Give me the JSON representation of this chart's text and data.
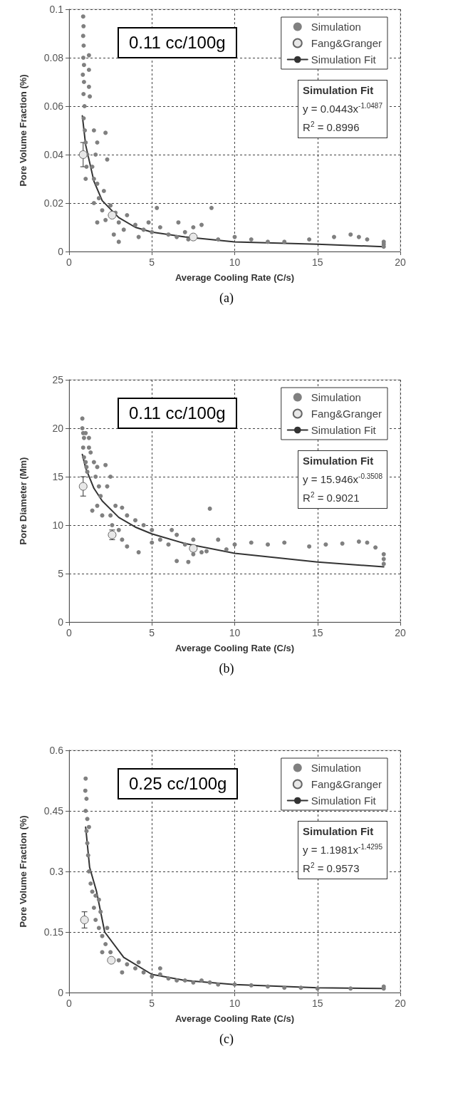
{
  "chart_data": [
    {
      "type": "scatter",
      "xlabel": "Average Cooling Rate (C/s)",
      "ylabel": "Pore Volume Fraction (%)",
      "xlim": [
        0,
        20
      ],
      "xticks": [
        0,
        5,
        10,
        15,
        20
      ],
      "ylim": [
        0,
        0.1
      ],
      "yticks": [
        0,
        0.02,
        0.04,
        0.06,
        0.08,
        0.1
      ],
      "grid": true,
      "legend": "top right",
      "annotations": [
        "0.11 cc/100g",
        "Simulation Fit",
        "y = 0.0443x$^{-1.0487}$",
        "R$^{2}$ = 0.8996",
        "(a)"
      ],
      "series": [
        {
          "name": "Simulation",
          "color": "#808080",
          "marker": "circle",
          "x": [
            0.85,
            0.87,
            0.85,
            0.88,
            0.86,
            0.9,
            0.83,
            0.9,
            0.87,
            0.93,
            0.88,
            0.95,
            1.0,
            1.1,
            1.05,
            1.0,
            1.2,
            1.2,
            1.2,
            1.25,
            1.5,
            1.7,
            1.6,
            1.4,
            1.5,
            2.2,
            2.3,
            1.7,
            1.8,
            1.5,
            2.0,
            1.7,
            2.2,
            2.5,
            2.8,
            3.0,
            3.3,
            2.7,
            3.0,
            2.1,
            4.0,
            4.5,
            5.0,
            5.5,
            6.0,
            5.3,
            6.5,
            7.0,
            7.2,
            7.5,
            8.0,
            8.6,
            6.6,
            9.0,
            10,
            11,
            12,
            13,
            14.5,
            16,
            17,
            17.5,
            18,
            19,
            19,
            19,
            3.5,
            4.2,
            4.8
          ],
          "values": [
            0.097,
            0.093,
            0.089,
            0.085,
            0.08,
            0.077,
            0.073,
            0.07,
            0.065,
            0.06,
            0.055,
            0.05,
            0.045,
            0.04,
            0.035,
            0.03,
            0.081,
            0.075,
            0.068,
            0.064,
            0.05,
            0.045,
            0.04,
            0.035,
            0.03,
            0.049,
            0.038,
            0.028,
            0.022,
            0.02,
            0.017,
            0.012,
            0.013,
            0.019,
            0.016,
            0.012,
            0.009,
            0.007,
            0.004,
            0.025,
            0.011,
            0.009,
            0.008,
            0.01,
            0.007,
            0.018,
            0.006,
            0.008,
            0.005,
            0.01,
            0.011,
            0.018,
            0.012,
            0.005,
            0.006,
            0.005,
            0.004,
            0.004,
            0.005,
            0.006,
            0.007,
            0.006,
            0.005,
            0.004,
            0.003,
            0.002,
            0.015,
            0.006,
            0.012
          ]
        },
        {
          "name": "Fang&Granger",
          "color": "#e8e8e8",
          "marker": "circle",
          "x": [
            0.85,
            2.6,
            7.5
          ],
          "values": [
            0.04,
            0.015,
            0.006
          ],
          "errors": [
            0.005,
            null,
            null
          ]
        },
        {
          "name": "Simulation Fit",
          "type": "line",
          "color": "#333333",
          "marker": "none",
          "x": [
            0.8,
            1,
            1.5,
            2,
            3,
            4,
            5,
            7,
            10,
            15,
            19
          ],
          "values": [
            0.056,
            0.044,
            0.029,
            0.021,
            0.014,
            0.01,
            0.008,
            0.006,
            0.004,
            0.003,
            0.002
          ]
        }
      ]
    },
    {
      "type": "scatter",
      "xlabel": "Average Cooling Rate (C/s)",
      "ylabel": "Pore Diameter (Mm)",
      "xlim": [
        0,
        20
      ],
      "xticks": [
        0,
        5,
        10,
        15,
        20
      ],
      "ylim": [
        0,
        25
      ],
      "yticks": [
        0,
        5,
        10,
        15,
        20,
        25
      ],
      "grid": true,
      "legend": "top right",
      "annotations": [
        "0.11 cc/100g",
        "Simulation Fit",
        "y = 15.946x$^{-0.3508}$",
        "R$^{2}$ = 0.9021",
        "(b)"
      ],
      "series": [
        {
          "name": "Simulation",
          "color": "#808080",
          "marker": "circle",
          "x": [
            0.8,
            0.8,
            0.85,
            0.9,
            0.85,
            0.9,
            1.0,
            1.05,
            1.1,
            1.0,
            1.2,
            1.2,
            1.3,
            1.5,
            1.7,
            1.6,
            1.8,
            1.9,
            1.7,
            1.4,
            2.2,
            2.3,
            2.5,
            2.0,
            2.5,
            2.8,
            3.2,
            3.5,
            2.6,
            3.0,
            3.2,
            3.5,
            4.0,
            4.5,
            5.0,
            4.2,
            5.0,
            5.5,
            6.0,
            6.5,
            7.0,
            6.5,
            7.2,
            7.5,
            8.0,
            8.5,
            8.3,
            9.0,
            10,
            11,
            12,
            13,
            14.5,
            15.5,
            16.5,
            17.5,
            18,
            18.5,
            19,
            19,
            19,
            6.2,
            7.5,
            9.5
          ],
          "values": [
            21,
            20,
            19.5,
            19,
            18,
            17,
            16.5,
            16,
            15.5,
            19.5,
            19,
            18,
            17.5,
            16.5,
            16,
            15,
            14,
            13,
            12,
            11.5,
            16.2,
            14,
            15,
            11,
            11,
            12,
            11.8,
            11,
            10,
            9.5,
            8.5,
            7.8,
            10.5,
            10,
            9.5,
            7.2,
            8.2,
            8.5,
            8,
            9,
            8,
            6.3,
            6.2,
            7,
            7.2,
            11.7,
            7.3,
            8.5,
            8,
            8.2,
            8,
            8.2,
            7.8,
            8,
            8.1,
            8.3,
            8.2,
            7.7,
            7,
            6.5,
            6,
            9.5,
            8.5,
            7.5
          ]
        },
        {
          "name": "Fang&Granger",
          "color": "#e8e8e8",
          "marker": "circle",
          "x": [
            0.85,
            2.6,
            7.5
          ],
          "values": [
            14,
            9,
            7.6
          ],
          "errors": [
            1,
            0.5,
            0.3
          ]
        },
        {
          "name": "Simulation Fit",
          "type": "line",
          "color": "#333333",
          "marker": "none",
          "x": [
            0.8,
            1,
            1.5,
            2,
            3,
            4,
            5,
            7,
            10,
            15,
            19
          ],
          "values": [
            17.3,
            15.9,
            13.8,
            12.5,
            10.8,
            9.8,
            9.1,
            8.1,
            7.1,
            6.2,
            5.7
          ]
        }
      ]
    },
    {
      "type": "scatter",
      "xlabel": "Average Cooling Rate (C/s)",
      "ylabel": "Pore Volume Fraction (%)",
      "xlim": [
        0,
        20
      ],
      "xticks": [
        0,
        5,
        10,
        15,
        20
      ],
      "ylim": [
        0,
        0.6
      ],
      "yticks": [
        0,
        0.15,
        0.3,
        0.45,
        0.6
      ],
      "grid": true,
      "legend": "top right",
      "annotations": [
        "0.25 cc/100g",
        "Simulation Fit",
        "y = 1.1981x$^{-1.4295}$",
        "R$^{2}$ = 0.9573",
        "(c)"
      ],
      "series": [
        {
          "name": "Simulation",
          "color": "#808080",
          "marker": "circle",
          "x": [
            1.0,
            0.98,
            1.05,
            1.0,
            1.1,
            1.05,
            1.1,
            1.15,
            1.2,
            1.3,
            1.4,
            1.6,
            1.8,
            1.9,
            1.5,
            1.6,
            1.8,
            2.0,
            2.2,
            2.0,
            2.5,
            3.0,
            3.5,
            3.2,
            4.0,
            4.5,
            5.0,
            5.5,
            6.0,
            6.5,
            7.0,
            7.5,
            8.0,
            8.5,
            9.0,
            10,
            11,
            12,
            13,
            14,
            15,
            17,
            19,
            19,
            4.2,
            5.5,
            2.3,
            1.2
          ],
          "values": [
            0.53,
            0.5,
            0.48,
            0.45,
            0.43,
            0.4,
            0.37,
            0.34,
            0.3,
            0.27,
            0.25,
            0.24,
            0.23,
            0.2,
            0.21,
            0.18,
            0.16,
            0.14,
            0.12,
            0.1,
            0.1,
            0.08,
            0.07,
            0.05,
            0.06,
            0.05,
            0.04,
            0.045,
            0.035,
            0.03,
            0.03,
            0.025,
            0.03,
            0.025,
            0.02,
            0.02,
            0.018,
            0.015,
            0.012,
            0.012,
            0.01,
            0.01,
            0.01,
            0.015,
            0.075,
            0.06,
            0.16,
            0.41
          ]
        },
        {
          "name": "Fang&Granger",
          "color": "#e8e8e8",
          "marker": "circle",
          "x": [
            0.93,
            2.55
          ],
          "values": [
            0.18,
            0.08
          ],
          "errors": [
            0.02,
            null
          ]
        },
        {
          "name": "Simulation Fit",
          "type": "line",
          "color": "#333333",
          "marker": "none",
          "x": [
            1.0,
            1.24,
            1.66,
            2.15,
            3.3,
            5,
            7,
            10,
            15,
            19
          ],
          "values": [
            0.41,
            0.31,
            0.25,
            0.15,
            0.087,
            0.045,
            0.03,
            0.02,
            0.012,
            0.01
          ]
        }
      ]
    }
  ]
}
